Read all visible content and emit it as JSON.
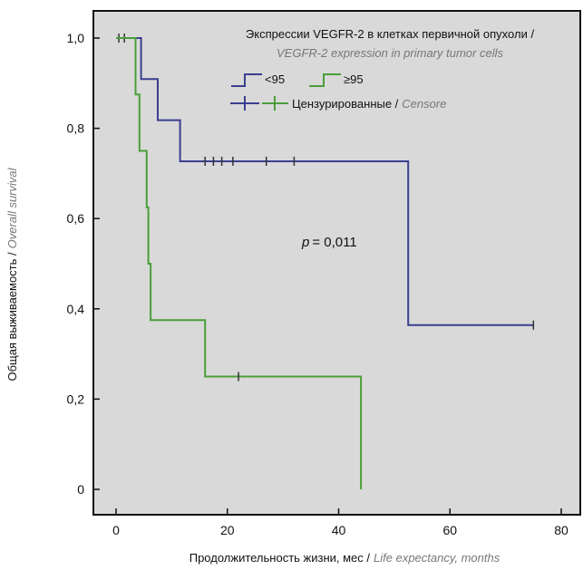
{
  "chart_data": {
    "type": "line",
    "subtype": "kaplan-meier",
    "legend_title_ru": "Экспрессии VEGFR-2 в клетках первичной опухоли /",
    "legend_title_en": "VEGFR-2 expression in primary tumor cells",
    "legend_censored_ru": "Цензурированные /",
    "legend_censored_en": "Censore",
    "xlabel_ru": "Продолжительность жизни, мес /",
    "xlabel_en": "Life expectancy, months",
    "ylabel_ru": "Общая выживаемость /",
    "ylabel_en": "Overall survival",
    "annotation_p": "p",
    "annotation_eq": "= 0,011",
    "xlim": [
      -2,
      82
    ],
    "ylim": [
      -0.05,
      1.05
    ],
    "x_ticks": [
      0,
      20,
      40,
      60,
      80
    ],
    "x_tick_labels": [
      "0",
      "20",
      "40",
      "60",
      "80"
    ],
    "y_ticks": [
      0,
      0.2,
      0.4,
      0.6,
      0.8,
      1.0
    ],
    "y_tick_labels": [
      "0",
      "0,2",
      "0,4",
      "0,6",
      "0,8",
      "1,0"
    ],
    "background": "#d9d9d9",
    "series": [
      {
        "name": "<95",
        "color": "#3a3f8f",
        "steps": [
          [
            0,
            1.0
          ],
          [
            4.5,
            1.0
          ],
          [
            4.5,
            0.909
          ],
          [
            7.5,
            0.909
          ],
          [
            7.5,
            0.818
          ],
          [
            11.5,
            0.818
          ],
          [
            11.5,
            0.727
          ],
          [
            52.5,
            0.727
          ],
          [
            52.5,
            0.364
          ],
          [
            75,
            0.364
          ]
        ],
        "censored": [
          [
            0.5,
            1.0
          ],
          [
            1.5,
            1.0
          ],
          [
            16,
            0.727
          ],
          [
            17.5,
            0.727
          ],
          [
            19,
            0.727
          ],
          [
            21,
            0.727
          ],
          [
            27,
            0.727
          ],
          [
            32,
            0.727
          ],
          [
            75,
            0.364
          ]
        ]
      },
      {
        "name": "≥95",
        "color": "#4a9e3a",
        "steps": [
          [
            0,
            1.0
          ],
          [
            3.5,
            1.0
          ],
          [
            3.5,
            0.875
          ],
          [
            4.2,
            0.875
          ],
          [
            4.2,
            0.75
          ],
          [
            5.5,
            0.75
          ],
          [
            5.5,
            0.625
          ],
          [
            5.8,
            0.625
          ],
          [
            5.8,
            0.5
          ],
          [
            6.2,
            0.5
          ],
          [
            6.2,
            0.375
          ],
          [
            16,
            0.375
          ],
          [
            16,
            0.25
          ],
          [
            44,
            0.25
          ],
          [
            44,
            0.0
          ]
        ],
        "censored": [
          [
            22,
            0.25
          ]
        ]
      }
    ]
  }
}
